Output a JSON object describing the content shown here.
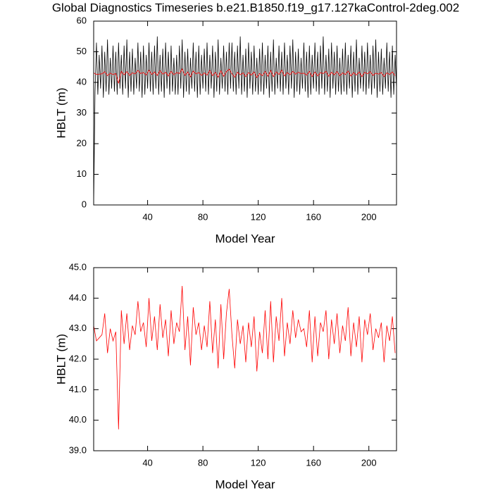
{
  "chart_data": [
    {
      "type": "line",
      "title": "Global Diagnostics Timeseries b.e21.B1850.f19_g17.127kaControl-2deg.002",
      "xlabel": "Model Year",
      "ylabel": "HBLT (m)",
      "xlim": [
        1,
        220
      ],
      "ylim": [
        0,
        60
      ],
      "xticks": [
        40,
        80,
        120,
        160,
        200
      ],
      "yticks": [
        0,
        10,
        20,
        30,
        40,
        50,
        60
      ],
      "series": [
        {
          "color": "#000000",
          "x": [
            1,
            2,
            3,
            4,
            5,
            6,
            7,
            8,
            9,
            10,
            11,
            12,
            13,
            14,
            15,
            16,
            17,
            18,
            19,
            20,
            21,
            22,
            23,
            24,
            25,
            26,
            27,
            28,
            29,
            30,
            31,
            32,
            33,
            34,
            35,
            36,
            37,
            38,
            39,
            40,
            41,
            42,
            43,
            44,
            45,
            46,
            47,
            48,
            49,
            50,
            51,
            52,
            53,
            54,
            55,
            56,
            57,
            58,
            59,
            60,
            61,
            62,
            63,
            64,
            65,
            66,
            67,
            68,
            69,
            70,
            71,
            72,
            73,
            74,
            75,
            76,
            77,
            78,
            79,
            80,
            81,
            82,
            83,
            84,
            85,
            86,
            87,
            88,
            89,
            90,
            91,
            92,
            93,
            94,
            95,
            96,
            97,
            98,
            99,
            100,
            101,
            102,
            103,
            104,
            105,
            106,
            107,
            108,
            109,
            110,
            111,
            112,
            113,
            114,
            115,
            116,
            117,
            118,
            119,
            120,
            121,
            122,
            123,
            124,
            125,
            126,
            127,
            128,
            129,
            130,
            131,
            132,
            133,
            134,
            135,
            136,
            137,
            138,
            139,
            140,
            141,
            142,
            143,
            144,
            145,
            146,
            147,
            148,
            149,
            150,
            151,
            152,
            153,
            154,
            155,
            156,
            157,
            158,
            159,
            160,
            161,
            162,
            163,
            164,
            165,
            166,
            167,
            168,
            169,
            170,
            171,
            172,
            173,
            174,
            175,
            176,
            177,
            178,
            179,
            180,
            181,
            182,
            183,
            184,
            185,
            186,
            187,
            188,
            189,
            190,
            191,
            192,
            193,
            194,
            195,
            196,
            197,
            198,
            199,
            200,
            201,
            202,
            203,
            204,
            205,
            206,
            207,
            208,
            209,
            210,
            211,
            212,
            213,
            214,
            215,
            216,
            217,
            218,
            219,
            220
          ],
          "values": [
            0,
            37,
            53,
            36,
            49,
            38,
            52,
            35,
            50,
            37,
            54,
            36,
            48,
            38,
            52,
            37,
            50,
            36,
            53,
            38,
            49,
            36,
            52,
            38,
            54,
            35,
            50,
            37,
            51,
            36,
            48,
            38,
            53,
            37,
            50,
            35,
            52,
            36,
            49,
            38,
            53,
            37,
            50,
            36,
            52,
            38,
            55,
            36,
            49,
            37,
            51,
            35,
            53,
            38,
            50,
            36,
            52,
            37,
            48,
            36,
            49,
            36,
            52,
            38,
            54,
            35,
            50,
            37,
            51,
            36,
            48,
            38,
            53,
            37,
            50,
            35,
            52,
            36,
            49,
            38,
            51,
            37,
            53,
            36,
            49,
            38,
            52,
            35,
            50,
            37,
            54,
            36,
            48,
            38,
            52,
            37,
            50,
            36,
            53,
            38,
            53,
            37,
            50,
            36,
            52,
            38,
            55,
            36,
            49,
            37,
            51,
            35,
            53,
            38,
            50,
            36,
            52,
            37,
            48,
            36,
            51,
            37,
            53,
            36,
            49,
            38,
            52,
            35,
            50,
            37,
            54,
            36,
            48,
            38,
            52,
            37,
            50,
            36,
            53,
            38,
            49,
            36,
            52,
            38,
            54,
            35,
            50,
            37,
            51,
            36,
            48,
            38,
            53,
            37,
            50,
            35,
            52,
            36,
            49,
            38,
            53,
            37,
            50,
            36,
            52,
            38,
            55,
            36,
            49,
            37,
            51,
            35,
            53,
            38,
            50,
            36,
            52,
            37,
            48,
            36,
            51,
            37,
            53,
            36,
            49,
            38,
            52,
            35,
            50,
            37,
            54,
            36,
            48,
            38,
            52,
            37,
            50,
            36,
            53,
            38,
            49,
            36,
            52,
            38,
            54,
            35,
            50,
            37,
            51,
            36,
            48,
            38,
            53,
            37,
            50,
            35,
            52,
            36,
            49,
            38
          ]
        },
        {
          "color": "#ff0000",
          "x": [
            1,
            3,
            5,
            7,
            9,
            11,
            13,
            15,
            17,
            19,
            21,
            23,
            25,
            27,
            29,
            31,
            33,
            35,
            37,
            39,
            41,
            43,
            45,
            47,
            49,
            51,
            53,
            55,
            57,
            59,
            61,
            63,
            65,
            67,
            69,
            71,
            73,
            75,
            77,
            79,
            81,
            83,
            85,
            87,
            89,
            91,
            93,
            95,
            97,
            99,
            101,
            103,
            105,
            107,
            109,
            111,
            113,
            115,
            117,
            119,
            121,
            123,
            125,
            127,
            129,
            131,
            133,
            135,
            137,
            139,
            141,
            143,
            145,
            147,
            149,
            151,
            153,
            155,
            157,
            159,
            161,
            163,
            165,
            167,
            169,
            171,
            173,
            175,
            177,
            179,
            181,
            183,
            185,
            187,
            189,
            191,
            193,
            195,
            197,
            199,
            201,
            203,
            205,
            207,
            209,
            211,
            213,
            215,
            217,
            219
          ],
          "values": [
            43.1,
            42.6,
            42.7,
            42.8,
            43.5,
            42.2,
            43.0,
            42.6,
            42.9,
            39.7,
            43.6,
            42.5,
            43.5,
            42.3,
            43.1,
            42.8,
            43.9,
            42.9,
            43.2,
            42.4,
            44.0,
            42.6,
            43.4,
            42.3,
            43.8,
            42.7,
            43.3,
            42.1,
            43.6,
            42.5,
            43.2,
            42.9,
            44.4,
            42.3,
            43.4,
            41.8,
            43.7,
            42.8,
            43.2,
            42.3,
            43.1,
            42.4,
            43.9,
            42.2,
            43.3,
            41.7,
            43.8,
            42.0,
            43.5,
            44.3,
            42.8,
            41.7,
            43.3,
            42.5,
            43.1,
            41.9,
            43.2,
            42.4,
            43.4,
            41.6,
            42.9,
            42.2,
            43.6,
            42.0,
            43.9,
            41.9,
            43.4,
            42.6,
            44.0,
            42.1,
            43.2,
            42.5,
            43.6,
            42.7,
            43.3,
            42.9,
            43.0,
            42.4,
            43.6,
            41.9,
            43.4,
            42.1,
            43.2,
            42.9,
            43.6,
            42.0,
            43.3,
            42.5,
            43.5,
            42.2,
            43.1,
            42.6,
            43.7,
            42.1,
            43.2,
            42.4,
            43.4,
            41.9,
            43.3,
            42.8,
            43.5,
            42.3,
            43.0,
            42.7,
            43.2,
            41.9,
            43.1,
            42.6,
            43.4,
            42.2
          ]
        }
      ]
    },
    {
      "type": "line",
      "xlabel": "Model Year",
      "ylabel": "HBLT (m)",
      "xlim": [
        1,
        220
      ],
      "ylim": [
        39,
        45
      ],
      "xticks": [
        40,
        80,
        120,
        160,
        200
      ],
      "yticks": [
        {
          "value": 39,
          "label": "39.0"
        },
        {
          "value": 40,
          "label": "40.0"
        },
        {
          "value": 41,
          "label": "41.0"
        },
        {
          "value": 42,
          "label": "42.0"
        },
        {
          "value": 43,
          "label": "43.0"
        },
        {
          "value": 44,
          "label": "44.0"
        },
        {
          "value": 45,
          "label": "45.0"
        }
      ],
      "series": [
        {
          "color": "#ff0000",
          "x": [
            1,
            3,
            5,
            7,
            9,
            11,
            13,
            15,
            17,
            19,
            21,
            23,
            25,
            27,
            29,
            31,
            33,
            35,
            37,
            39,
            41,
            43,
            45,
            47,
            49,
            51,
            53,
            55,
            57,
            59,
            61,
            63,
            65,
            67,
            69,
            71,
            73,
            75,
            77,
            79,
            81,
            83,
            85,
            87,
            89,
            91,
            93,
            95,
            97,
            99,
            101,
            103,
            105,
            107,
            109,
            111,
            113,
            115,
            117,
            119,
            121,
            123,
            125,
            127,
            129,
            131,
            133,
            135,
            137,
            139,
            141,
            143,
            145,
            147,
            149,
            151,
            153,
            155,
            157,
            159,
            161,
            163,
            165,
            167,
            169,
            171,
            173,
            175,
            177,
            179,
            181,
            183,
            185,
            187,
            189,
            191,
            193,
            195,
            197,
            199,
            201,
            203,
            205,
            207,
            209,
            211,
            213,
            215,
            217,
            219
          ],
          "values": [
            43.1,
            42.6,
            42.7,
            42.8,
            43.5,
            42.2,
            43.0,
            42.6,
            42.9,
            39.7,
            43.6,
            42.5,
            43.5,
            42.3,
            43.1,
            42.8,
            43.9,
            42.9,
            43.2,
            42.4,
            44.0,
            42.6,
            43.4,
            42.3,
            43.8,
            42.7,
            43.3,
            42.1,
            43.6,
            42.5,
            43.2,
            42.9,
            44.4,
            42.3,
            43.4,
            41.8,
            43.7,
            42.8,
            43.2,
            42.3,
            43.1,
            42.4,
            43.9,
            42.2,
            43.3,
            41.7,
            43.8,
            42.0,
            43.5,
            44.3,
            42.8,
            41.7,
            43.3,
            42.5,
            43.1,
            41.9,
            43.2,
            42.4,
            43.4,
            41.6,
            42.9,
            42.2,
            43.6,
            42.0,
            43.9,
            41.9,
            43.4,
            42.6,
            44.0,
            42.1,
            43.2,
            42.5,
            43.6,
            42.7,
            43.3,
            42.9,
            43.0,
            42.4,
            43.6,
            41.9,
            43.4,
            42.1,
            43.2,
            42.9,
            43.6,
            42.0,
            43.3,
            42.5,
            43.5,
            42.2,
            43.1,
            42.6,
            43.7,
            42.1,
            43.2,
            42.4,
            43.4,
            41.9,
            43.3,
            42.8,
            43.5,
            42.3,
            43.0,
            42.7,
            43.2,
            41.9,
            43.1,
            42.6,
            43.4,
            42.2
          ]
        }
      ]
    }
  ]
}
